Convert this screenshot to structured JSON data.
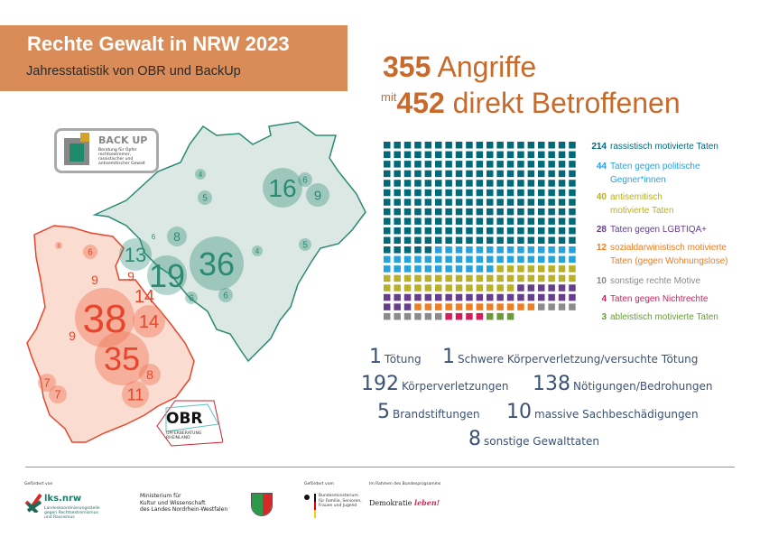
{
  "header": {
    "title": "Rechte Gewalt in NRW 2023",
    "subtitle": "Jahresstatistik von OBR und BackUp"
  },
  "headline": {
    "attacks_number": "355",
    "attacks_label": "Angriffe",
    "mit": "mit",
    "affected_number": "452",
    "affected_label": "direkt Betroffenen"
  },
  "chart_data": {
    "type": "waffle",
    "columns": 19,
    "total": 355,
    "series": [
      {
        "value": 214,
        "label": "rassistisch motivierte Taten",
        "color": "#00697a"
      },
      {
        "value": 44,
        "label": "Taten gegen politische Gegner*innen",
        "color": "#27a2db"
      },
      {
        "value": 40,
        "label": "antisemitisch motivierte Taten",
        "color": "#b8b026"
      },
      {
        "value": 28,
        "label": "Taten gegen LGBTIQA+",
        "color": "#653f8b"
      },
      {
        "value": 12,
        "label": "sozialdarwinistisch motivierte Taten (gegen Wohnungslose)",
        "color": "#ef7d22"
      },
      {
        "value": 10,
        "label": "sonstige rechte Motive",
        "color": "#8b8b8b"
      },
      {
        "value": 4,
        "label": "Taten gegen Nichtrechte",
        "color": "#d41e5c"
      },
      {
        "value": 3,
        "label": "ableistisch motivierte Taten",
        "color": "#6b9a3a"
      }
    ]
  },
  "legend_lines": [
    [
      "rassistisch motivierte Taten"
    ],
    [
      "Taten gegen politische",
      "Gegner*innen"
    ],
    [
      "antisemitisch",
      "motivierte Taten"
    ],
    [
      "Taten gegen LGBTIQA+"
    ],
    [
      "sozialdarwinistisch motivierte",
      "Taten (gegen Wohnungslose)"
    ],
    [
      "sonstige rechte Motive"
    ],
    [
      "Taten gegen Nichtrechte"
    ],
    [
      "ableistisch motivierte Taten"
    ]
  ],
  "stats": [
    {
      "n": "1",
      "t": "Tötung"
    },
    {
      "n": "1",
      "t": "Schwere Körperverletzung/versuchte Tötung"
    },
    {
      "n": "192",
      "t": "Körperverletzungen"
    },
    {
      "n": "138",
      "t": "Nötigungen/Bedrohungen"
    },
    {
      "n": "5",
      "t": "Brandstiftungen"
    },
    {
      "n": "10",
      "t": "massive Sachbeschädigungen"
    },
    {
      "n": "8",
      "t": "sonstige Gewalttaten"
    }
  ],
  "map": {
    "westfalen_color": "#2b8a74",
    "rheinland_color": "#e8452c",
    "westfalen": [
      "16",
      "6",
      "9",
      "4",
      "5",
      "13",
      "6",
      "8",
      "19",
      "36",
      "6",
      "6",
      "4",
      "5"
    ],
    "rheinland": [
      "3",
      "6",
      "38",
      "9",
      "9",
      "14",
      "14",
      "9",
      "35",
      "8",
      "11",
      "7",
      "7"
    ]
  },
  "logos": {
    "backup": {
      "name": "BACK UP",
      "tagline": "Beratung für Opfer rechtsextremer, rassistischer und antisemitischer Gewalt"
    },
    "obr": {
      "name": "OBR",
      "tagline": "OPFERBERATUNG RHEINLAND"
    },
    "lks": {
      "caption": "Gefördert von",
      "name": "lks.nrw",
      "tagline": "Landeskoordinierungsstelle gegen Rechtsextremismus und Rassismus"
    },
    "ministry": {
      "line1": "Ministerium für",
      "line2": "Kultur und Wissenschaft",
      "line3": "des Landes Nordrhein-Westfalen"
    },
    "bmfsfj": {
      "caption": "Gefördert vom",
      "name": "Bundesministerium für Familie, Senioren, Frauen und Jugend"
    },
    "demokratie": {
      "caption": "Im Rahmen des Bundesprogramms",
      "name": "Demokratie",
      "name2": "leben!"
    }
  }
}
